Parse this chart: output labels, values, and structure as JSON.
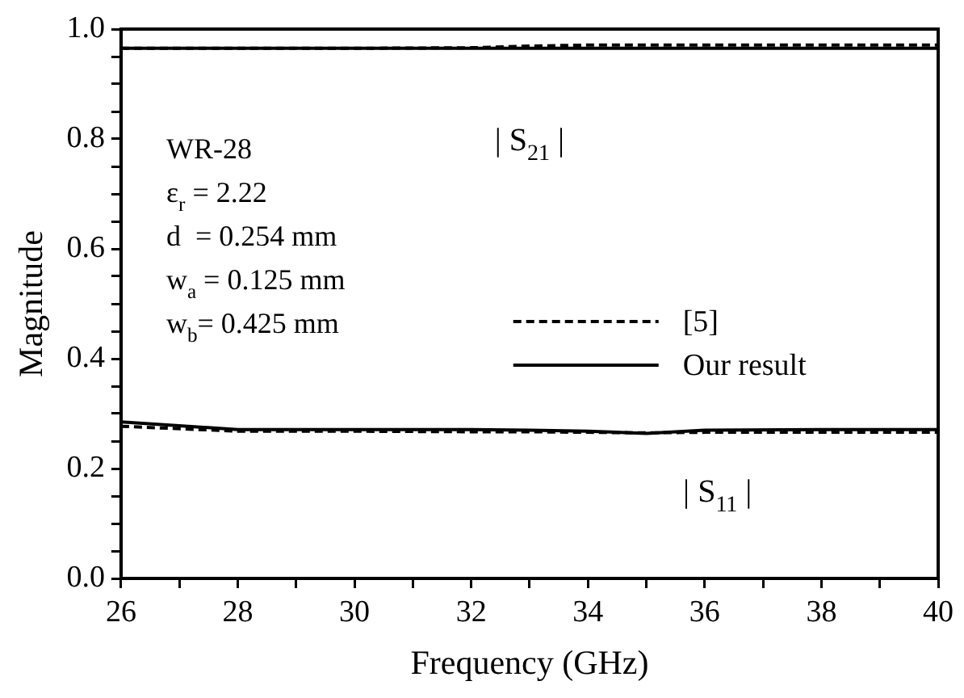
{
  "chart_data": {
    "type": "line",
    "xlabel": "Frequency (GHz)",
    "ylabel": "Magnitude",
    "xlim": [
      26,
      40
    ],
    "xticks": [
      26,
      {
        "value": 27,
        "label": null
      },
      28,
      {
        "value": 29,
        "label": null
      },
      30,
      {
        "value": 31,
        "label": null
      },
      32,
      {
        "value": 33,
        "label": null
      },
      34,
      {
        "value": 35,
        "label": null
      },
      36,
      {
        "value": 37,
        "label": null
      },
      38,
      {
        "value": 39,
        "label": null
      },
      40
    ],
    "ylim": [
      0,
      1
    ],
    "yticks": [
      {
        "value": 0.05,
        "label": null
      },
      {
        "value": 0.1,
        "label": null
      },
      {
        "value": 0.15,
        "label": null
      },
      {
        "value": 0,
        "label": "0.0"
      },
      0.2,
      {
        "value": 0.25,
        "label": null
      },
      {
        "value": 0.3,
        "label": null
      },
      {
        "value": 0.35,
        "label": null
      },
      0.4,
      {
        "value": 0.45,
        "label": null
      },
      {
        "value": 0.5,
        "label": null
      },
      {
        "value": 0.55,
        "label": null
      },
      0.6,
      {
        "value": 0.65,
        "label": null
      },
      {
        "value": 0.7,
        "label": null
      },
      {
        "value": 0.75,
        "label": null
      },
      0.8,
      {
        "value": 0.85,
        "label": null
      },
      {
        "value": 0.9,
        "label": null
      },
      {
        "value": 0.95,
        "label": null
      },
      {
        "value": 1,
        "label": "1.0"
      }
    ],
    "x": [
      26,
      28,
      30,
      32,
      33,
      34,
      35,
      36,
      38,
      40
    ],
    "series": [
      {
        "name": "[5]",
        "color": "#000000",
        "line_style": "dashed",
        "values": [
          0.965,
          0.965,
          0.965,
          0.966,
          0.969,
          0.971,
          0.971,
          0.971,
          0.971,
          0.971
        ]
      },
      {
        "name": "Our result",
        "color": "#000000",
        "line_style": "solid",
        "values": [
          0.965,
          0.965,
          0.965,
          0.965,
          0.965,
          0.965,
          0.965,
          0.965,
          0.965,
          0.965
        ]
      },
      {
        "color": "#000000",
        "line_style": "dashed",
        "values": [
          0.277,
          0.268,
          0.268,
          0.267,
          0.267,
          0.266,
          0.265,
          0.266,
          0.266,
          0.266
        ]
      },
      {
        "color": "#000000",
        "line_style": "solid",
        "values": [
          0.285,
          0.271,
          0.271,
          0.271,
          0.27,
          0.268,
          0.264,
          0.27,
          0.271,
          0.271
        ]
      }
    ],
    "annotations": [
      "WR-28",
      "ε$_{r}$ = 2.22",
      "d  = 0.254 mm",
      "w$_{a}$ = 0.125 mm",
      "w$_{b}$= 0.425 mm",
      "| S$_{21}$ |",
      "| S$_{11}$ |"
    ],
    "grid": false,
    "legend": "right",
    "marker": "none"
  }
}
